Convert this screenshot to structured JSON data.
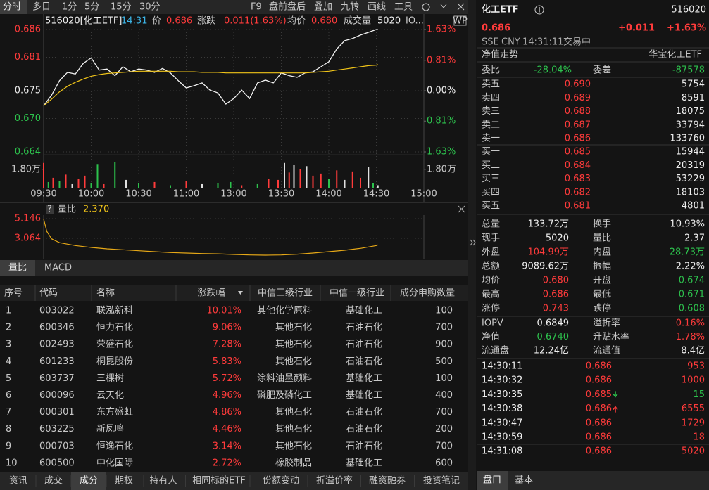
{
  "toolbar": {
    "tabs": [
      "分时",
      "多日",
      "1分",
      "5分",
      "15分",
      "30分"
    ],
    "tools": [
      "F9",
      "盘前盘后",
      "叠加",
      "九转",
      "画线",
      "工具"
    ]
  },
  "chart_header": {
    "code_name": "516020[化工ETF]",
    "time": "14:31",
    "price": "0.686",
    "change_label": "涨跌",
    "change": "0.011(1.63%)",
    "avg": "0.680",
    "volume_label": "成交量",
    "volume": "5020",
    "more": "IO...",
    "badge": "WP"
  },
  "chart_data": [
    {
      "type": "line",
      "x": [
        0,
        5,
        10,
        15,
        20,
        25,
        30,
        35,
        40,
        45,
        50,
        55,
        60,
        65,
        70,
        75,
        80,
        85,
        90,
        95,
        100,
        105,
        110,
        115,
        120,
        125,
        130,
        135,
        140,
        145,
        150,
        155,
        160,
        165,
        170,
        175,
        180,
        185,
        190,
        195,
        200,
        205,
        210,
        211
      ],
      "series": [
        {
          "name": "价",
          "color": "#f2f2f2",
          "values": [
            0.6723,
            0.6742,
            0.6768,
            0.6783,
            0.678,
            0.6799,
            0.6809,
            0.6787,
            0.6789,
            0.6777,
            0.6793,
            0.6784,
            0.6789,
            0.6787,
            0.6783,
            0.679,
            0.6782,
            0.6768,
            0.6755,
            0.6759,
            0.6764,
            0.6751,
            0.6746,
            0.6726,
            0.6736,
            0.6751,
            0.6736,
            0.6764,
            0.6769,
            0.6764,
            0.6782,
            0.6777,
            0.6774,
            0.6782,
            0.6784,
            0.6793,
            0.6802,
            0.6825,
            0.684,
            0.6844,
            0.685,
            0.6855,
            0.686,
            0.686
          ]
        },
        {
          "name": "均价",
          "color": "#f0c419",
          "values": [
            0.6723,
            0.6735,
            0.6748,
            0.6758,
            0.6765,
            0.6771,
            0.6776,
            0.6779,
            0.6781,
            0.6782,
            0.6783,
            0.6784,
            0.6785,
            0.6785,
            0.6785,
            0.6785,
            0.6785,
            0.6784,
            0.6784,
            0.6784,
            0.6783,
            0.6783,
            0.6783,
            0.6782,
            0.6782,
            0.6782,
            0.6782,
            0.6782,
            0.6782,
            0.6782,
            0.6782,
            0.6782,
            0.6782,
            0.6782,
            0.6783,
            0.6784,
            0.6785,
            0.6787,
            0.6789,
            0.6791,
            0.6793,
            0.6795,
            0.6796,
            0.6797
          ]
        }
      ],
      "xlim": [
        0,
        240
      ],
      "xticks": [
        {
          "value": 0,
          "label": "09:30"
        },
        {
          "value": 30,
          "label": "10:00"
        },
        {
          "value": 60,
          "label": "10:30"
        },
        {
          "value": 90,
          "label": "11:00"
        },
        {
          "value": 120,
          "label": "13:00"
        },
        {
          "value": 150,
          "label": "13:30"
        },
        {
          "value": 180,
          "label": "14:00"
        },
        {
          "value": 210,
          "label": "14:30"
        },
        {
          "value": 240,
          "label": "15:00"
        }
      ],
      "ylim": [
        0.664,
        0.686
      ],
      "yticks": [
        0.686,
        0.681,
        0.675,
        {
          "value": 0.67,
          "label": "0.670"
        },
        0.664
      ],
      "y2lim": [
        -1.63,
        1.63
      ],
      "y2ticks": [
        {
          "value": 1.63,
          "label": "1.63%"
        },
        {
          "value": 0.81,
          "label": "0.81%"
        },
        {
          "value": 0,
          "label": "0.00%"
        },
        {
          "value": -0.81,
          "label": "0.81%"
        },
        {
          "value": -1.63,
          "label": "1.63%"
        }
      ],
      "grid": true
    },
    {
      "type": "bar",
      "x": [
        0,
        3,
        6,
        10,
        14,
        18,
        22,
        26,
        30,
        34,
        38,
        45,
        52,
        60,
        70,
        80,
        90,
        100,
        110,
        118,
        125,
        135,
        142,
        148,
        152,
        155,
        158,
        162,
        166,
        170,
        175,
        180,
        185,
        190,
        195,
        200,
        205,
        208,
        211
      ],
      "values": [
        2.4,
        0.6,
        1.0,
        0.7,
        1.3,
        0.4,
        0.9,
        1.2,
        0.5,
        2.3,
        0.4,
        2.5,
        0.8,
        0.5,
        0.6,
        0.3,
        0.7,
        0.4,
        0.5,
        0.6,
        0.3,
        0.4,
        0.9,
        0.8,
        2.4,
        1.5,
        2.2,
        1.8,
        2.1,
        1.2,
        1.4,
        0.9,
        1.7,
        0.8,
        1.6,
        1.0,
        2.0,
        0.5,
        0.3
      ],
      "colors": [
        "#ff3b3b",
        "#2dc24d",
        "#ff3b3b",
        "#2dc24d",
        "#ff3b3b",
        "#e0e0e0",
        "#ff3b3b",
        "#ff3b3b",
        "#2dc24d",
        "#2dc24d",
        "#ff3b3b",
        "#2dc24d",
        "#e0e0e0",
        "#2dc24d",
        "#ff3b3b",
        "#2dc24d",
        "#ff3b3b",
        "#e0e0e0",
        "#2dc24d",
        "#2dc24d",
        "#ff3b3b",
        "#2dc24d",
        "#ff3b3b",
        "#ff3b3b",
        "#e0e0e0",
        "#ff3b3b",
        "#e0e0e0",
        "#ff3b3b",
        "#e0e0e0",
        "#ff3b3b",
        "#ff3b3b",
        "#2dc24d",
        "#ff3b3b",
        "#e0e0e0",
        "#ff3b3b",
        "#ff3b3b",
        "#e0e0e0",
        "#2dc24d",
        "#e0e0e0"
      ],
      "xlim": [
        0,
        240
      ],
      "ylim": [
        0,
        2.65
      ],
      "yticks": [
        {
          "value": 1.8,
          "label": "1.80万"
        }
      ],
      "y2lim": [
        0,
        2.65
      ],
      "y2ticks": [
        {
          "value": 1.8,
          "label": "1.80万"
        }
      ]
    },
    {
      "type": "line",
      "title": "量比",
      "current": "2.370",
      "x": [
        0,
        2,
        5,
        10,
        20,
        30,
        40,
        50,
        60,
        70,
        80,
        90,
        100,
        110,
        120,
        130,
        140,
        150,
        160,
        170,
        180,
        190,
        200,
        210,
        211
      ],
      "series": [
        {
          "color": "#e6a817",
          "values": [
            5.1,
            3.8,
            3.0,
            2.6,
            2.3,
            2.1,
            1.95,
            1.85,
            1.75,
            1.65,
            1.55,
            1.5,
            1.45,
            1.42,
            1.35,
            1.3,
            1.28,
            1.3,
            1.38,
            1.5,
            1.65,
            1.8,
            2.0,
            2.3,
            2.37
          ]
        }
      ],
      "xlim": [
        0,
        240
      ],
      "ylim": [
        1.13,
        5.59
      ],
      "yticks": [
        5.146,
        3.064
      ]
    }
  ],
  "indicator_tabs": [
    "量比",
    "MACD"
  ],
  "table": {
    "columns": [
      "序号",
      "代码",
      "名称",
      "涨跌幅",
      "中信三级行业",
      "中信一级行业",
      "成分申购数量"
    ],
    "rows": [
      [
        "1",
        "003022",
        "联泓新科",
        "10.01%",
        "其他化学原料",
        "基础化工",
        "100"
      ],
      [
        "2",
        "600346",
        "恒力石化",
        "9.06%",
        "其他石化",
        "石油石化",
        "700"
      ],
      [
        "3",
        "002493",
        "荣盛石化",
        "7.28%",
        "其他石化",
        "石油石化",
        "900"
      ],
      [
        "4",
        "601233",
        "桐昆股份",
        "5.83%",
        "其他石化",
        "石油石化",
        "500"
      ],
      [
        "5",
        "603737",
        "三棵树",
        "5.72%",
        "涂料油墨颜料",
        "基础化工",
        "100"
      ],
      [
        "6",
        "600096",
        "云天化",
        "4.96%",
        "磷肥及磷化工",
        "基础化工",
        "400"
      ],
      [
        "7",
        "000301",
        "东方盛虹",
        "4.86%",
        "其他石化",
        "石油石化",
        "700"
      ],
      [
        "8",
        "603225",
        "新凤鸣",
        "4.46%",
        "其他石化",
        "石油石化",
        "200"
      ],
      [
        "9",
        "000703",
        "恒逸石化",
        "3.14%",
        "其他石化",
        "石油石化",
        "700"
      ],
      [
        "10",
        "600500",
        "中化国际",
        "2.72%",
        "橡胶制品",
        "基础化工",
        "600"
      ]
    ]
  },
  "bottom_tabs": [
    "资讯",
    "成交",
    "成分",
    "期权",
    "持有人",
    "相同标的ETF",
    "份额变动",
    "折溢价率",
    "融资融券",
    "投资笔记"
  ],
  "quote": {
    "name": "化工ETF",
    "code": "516020",
    "price": "0.686",
    "change": "+0.011",
    "change_pct": "+1.63%",
    "exchange": "SSE",
    "currency": "CNY",
    "time": "14:31:11",
    "state": "交易中",
    "nav_trend": "净值走势",
    "fund_name": "华宝化工ETF",
    "commission": [
      {
        "label": "委比",
        "value": "-28.04%"
      },
      {
        "label": "委差",
        "value": "-87578"
      }
    ],
    "asks": [
      {
        "label": "卖五",
        "price": "0.690",
        "volume": "5754"
      },
      {
        "label": "卖四",
        "price": "0.689",
        "volume": "8591"
      },
      {
        "label": "卖三",
        "price": "0.688",
        "volume": "18075"
      },
      {
        "label": "卖二",
        "price": "0.687",
        "volume": "33794"
      },
      {
        "label": "卖一",
        "price": "0.686",
        "volume": "133760"
      }
    ],
    "bids": [
      {
        "label": "买一",
        "price": "0.685",
        "volume": "15944"
      },
      {
        "label": "买二",
        "price": "0.684",
        "volume": "20319"
      },
      {
        "label": "买三",
        "price": "0.683",
        "volume": "53229"
      },
      {
        "label": "买四",
        "price": "0.682",
        "volume": "18103"
      },
      {
        "label": "买五",
        "price": "0.681",
        "volume": "4801"
      }
    ],
    "stats": [
      [
        {
          "label": "总量",
          "value": "133.72万"
        },
        {
          "label": "换手",
          "value": "10.93%"
        }
      ],
      [
        {
          "label": "现手",
          "value": "5020"
        },
        {
          "label": "量比",
          "value": "2.37"
        }
      ],
      [
        {
          "label": "外盘",
          "value": "104.99万",
          "color": "#ff3b3b"
        },
        {
          "label": "内盘",
          "value": "28.73万",
          "color": "#2dc24d"
        }
      ],
      [
        {
          "label": "总额",
          "value": "9089.62万"
        },
        {
          "label": "振幅",
          "value": "2.22%"
        }
      ],
      [
        {
          "label": "均价",
          "value": "0.680",
          "color": "#ff3b3b"
        },
        {
          "label": "开盘",
          "value": "0.674",
          "color": "#2dc24d"
        }
      ],
      [
        {
          "label": "最高",
          "value": "0.686",
          "color": "#ff3b3b"
        },
        {
          "label": "最低",
          "value": "0.671",
          "color": "#2dc24d"
        }
      ],
      [
        {
          "label": "涨停",
          "value": "0.743",
          "color": "#ff3b3b"
        },
        {
          "label": "跌停",
          "value": "0.608",
          "color": "#2dc24d"
        }
      ]
    ],
    "extra": [
      [
        {
          "label": "IOPV",
          "value": "0.6849"
        },
        {
          "label": "溢折率",
          "value": "0.16%",
          "color": "#ff3b3b"
        }
      ],
      [
        {
          "label": "净值",
          "value": "0.6740",
          "color": "#2dc24d"
        },
        {
          "label": "升贴水率",
          "value": "1.78%",
          "color": "#ff3b3b"
        }
      ],
      [
        {
          "label": "流通盘",
          "value": "12.24亿"
        },
        {
          "label": "流通值",
          "value": "8.4亿"
        }
      ]
    ],
    "trades": [
      {
        "time": "14:30:11",
        "price": "0.686",
        "volume": "953",
        "color": "#ff3b3b"
      },
      {
        "time": "14:30:32",
        "price": "0.686",
        "volume": "1000",
        "color": "#ff3b3b"
      },
      {
        "time": "14:30:35",
        "price": "0.685",
        "volume": "15",
        "color": "#2dc24d",
        "arrow": "down"
      },
      {
        "time": "14:30:38",
        "price": "0.686",
        "volume": "6555",
        "color": "#ff3b3b",
        "arrow": "up"
      },
      {
        "time": "14:30:47",
        "price": "0.686",
        "volume": "1729",
        "color": "#ff3b3b"
      },
      {
        "time": "14:30:59",
        "price": "0.686",
        "volume": "18",
        "color": "#ff3b3b"
      },
      {
        "time": "14:31:08",
        "price": "0.686",
        "volume": "5020",
        "color": "#ff3b3b"
      }
    ],
    "tabs": [
      "盘口",
      "基本"
    ]
  }
}
